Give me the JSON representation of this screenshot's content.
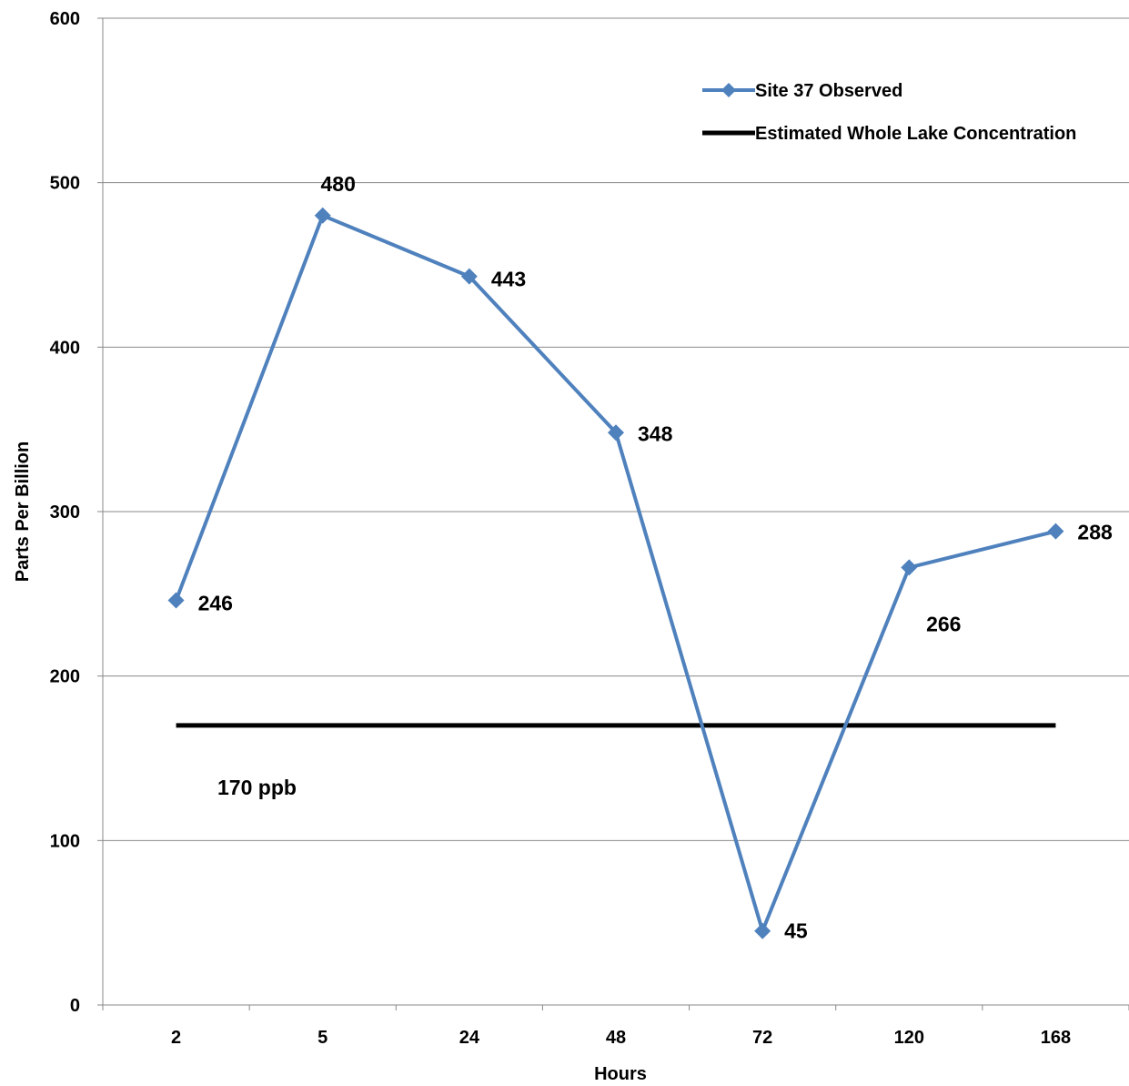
{
  "chart_data": {
    "type": "line",
    "title": "",
    "xlabel": "Hours",
    "ylabel": "Parts Per Billion",
    "categories": [
      "2",
      "5",
      "24",
      "48",
      "72",
      "120",
      "168"
    ],
    "ylim": [
      0,
      600
    ],
    "yticks": [
      "0",
      "100",
      "200",
      "300",
      "400",
      "500",
      "600"
    ],
    "grid": "horizontal",
    "legend_position": "top-right",
    "series": [
      {
        "name": "Site 37 Observed",
        "values": [
          246,
          480,
          443,
          348,
          45,
          266,
          288
        ],
        "data_labels": [
          "246",
          "480",
          "443",
          "348",
          "45",
          "266",
          "288"
        ],
        "color": "#4F81BD",
        "marker": "diamond"
      },
      {
        "name": "Estimated Whole Lake Concentration",
        "values": [
          170,
          170,
          170,
          170,
          170,
          170,
          170
        ],
        "color": "#000000",
        "marker": "none"
      }
    ],
    "annotations": [
      {
        "text": "170 ppb"
      }
    ]
  }
}
